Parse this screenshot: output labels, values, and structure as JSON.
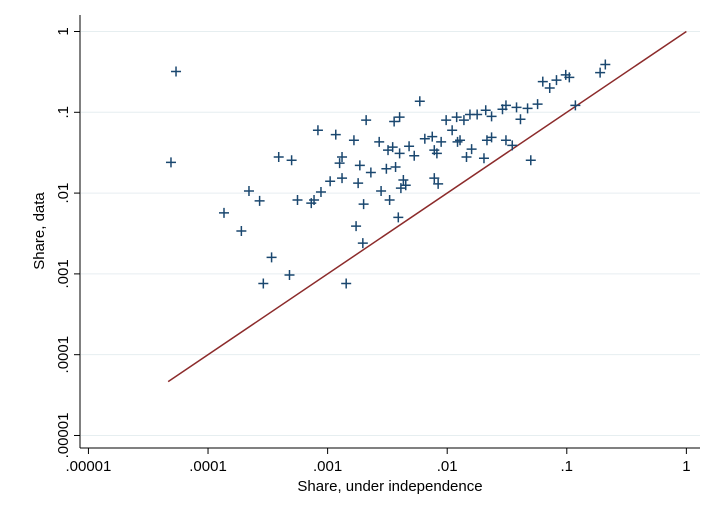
{
  "chart_data": {
    "type": "scatter",
    "x_label": "Share, under independence",
    "y_label": "Share, data",
    "log_x": true,
    "log_y": true,
    "grid": "y",
    "xlim": [
      8.5e-06,
      1.3
    ],
    "ylim": [
      7e-06,
      1.6
    ],
    "xticks": [
      {
        "value": 1e-05,
        "label": ".00001"
      },
      {
        "value": 0.0001,
        "label": ".0001"
      },
      {
        "value": 0.001,
        "label": ".001"
      },
      {
        "value": 0.01,
        "label": ".01"
      },
      {
        "value": 0.1,
        "label": ".1"
      },
      1
    ],
    "yticks": [
      {
        "value": 1e-05,
        "label": ".00001"
      },
      {
        "value": 0.0001,
        "label": ".0001"
      },
      {
        "value": 0.001,
        "label": ".001"
      },
      {
        "value": 0.01,
        "label": ".01"
      },
      {
        "value": 0.1,
        "label": ".1"
      },
      1
    ],
    "series": [
      {
        "color": "#1a476f",
        "marker": "+",
        "x": [
          5.4e-05,
          4.9e-05,
          0.000136,
          0.00019,
          0.00022,
          0.00027,
          0.00029,
          0.00034,
          0.00039,
          0.00048,
          0.0005,
          0.00056,
          0.00073,
          0.00077,
          0.00083,
          0.00088,
          0.00105,
          0.00117,
          0.00126,
          0.00132,
          0.00132,
          0.00166,
          0.00173,
          0.0018,
          0.00186,
          0.00197,
          0.002,
          0.0021,
          0.00143,
          0.0023,
          0.0027,
          0.0028,
          0.0031,
          0.0032,
          0.0033,
          0.0035,
          0.0036,
          0.0037,
          0.0039,
          0.004,
          0.004,
          0.0041,
          0.0043,
          0.0045,
          0.0048,
          0.0053,
          0.0059,
          0.0065,
          0.0075,
          0.0078,
          0.0078,
          0.0082,
          0.0084,
          0.0089,
          0.0098,
          0.011,
          0.012,
          0.0122,
          0.0128,
          0.0138,
          0.0145,
          0.0155,
          0.016,
          0.0178,
          0.0203,
          0.021,
          0.0215,
          0.0235,
          0.0235,
          0.029,
          0.031,
          0.031,
          0.035,
          0.038,
          0.041,
          0.047,
          0.05,
          0.057,
          0.063,
          0.072,
          0.082,
          0.098,
          0.105,
          0.118,
          0.19,
          0.21
        ],
        "values": [
          0.32,
          0.024,
          0.0057,
          0.0034,
          0.0106,
          0.008,
          0.00076,
          0.0016,
          0.028,
          0.00097,
          0.0255,
          0.0082,
          0.0075,
          0.0082,
          0.06,
          0.0103,
          0.014,
          0.053,
          0.0235,
          0.028,
          0.0153,
          0.045,
          0.0039,
          0.0133,
          0.022,
          0.0024,
          0.0073,
          0.08,
          0.00076,
          0.018,
          0.043,
          0.0106,
          0.02,
          0.034,
          0.0082,
          0.037,
          0.077,
          0.021,
          0.005,
          0.031,
          0.087,
          0.0115,
          0.0145,
          0.0125,
          0.038,
          0.029,
          0.137,
          0.047,
          0.05,
          0.034,
          0.0153,
          0.031,
          0.013,
          0.043,
          0.08,
          0.06,
          0.087,
          0.043,
          0.045,
          0.08,
          0.028,
          0.094,
          0.035,
          0.094,
          0.027,
          0.106,
          0.045,
          0.049,
          0.089,
          0.109,
          0.122,
          0.045,
          0.039,
          0.115,
          0.082,
          0.112,
          0.0255,
          0.126,
          0.24,
          0.2,
          0.25,
          0.29,
          0.27,
          0.122,
          0.31,
          0.39
        ]
      }
    ],
    "reference_line": {
      "color": "#8c2b2b",
      "x": [
        4.64e-05,
        1
      ],
      "values": [
        4.64e-05,
        1
      ]
    }
  }
}
